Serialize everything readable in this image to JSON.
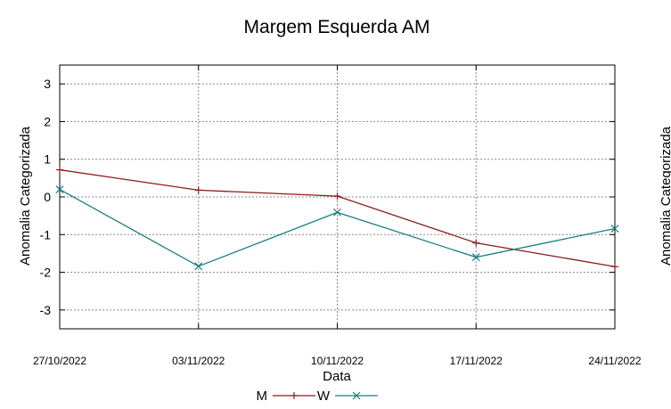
{
  "chart_data": {
    "type": "line",
    "title": "Margem Esquerda AM",
    "xlabel": "Data",
    "ylabel": "Anomalia Categorizada",
    "secondary_ylabel_fragment": "Anomalia Categorizada",
    "categories": [
      "27/10/2022",
      "03/11/2022",
      "10/11/2022",
      "17/11/2022",
      "24/11/2022"
    ],
    "ylim": [
      -3.5,
      3.5
    ],
    "yticks": [
      -3,
      -2,
      -1,
      0,
      1,
      2,
      3
    ],
    "grid": true,
    "legend_position": "bottom",
    "series": [
      {
        "name": "M",
        "values": [
          0.72,
          0.18,
          0.02,
          -1.22,
          -1.85
        ],
        "color": "#8b1a1a",
        "marker": "plus"
      },
      {
        "name": "W",
        "values": [
          0.2,
          -1.84,
          -0.41,
          -1.6,
          -0.84
        ],
        "color": "#1a7f80",
        "marker": "cross"
      }
    ]
  }
}
